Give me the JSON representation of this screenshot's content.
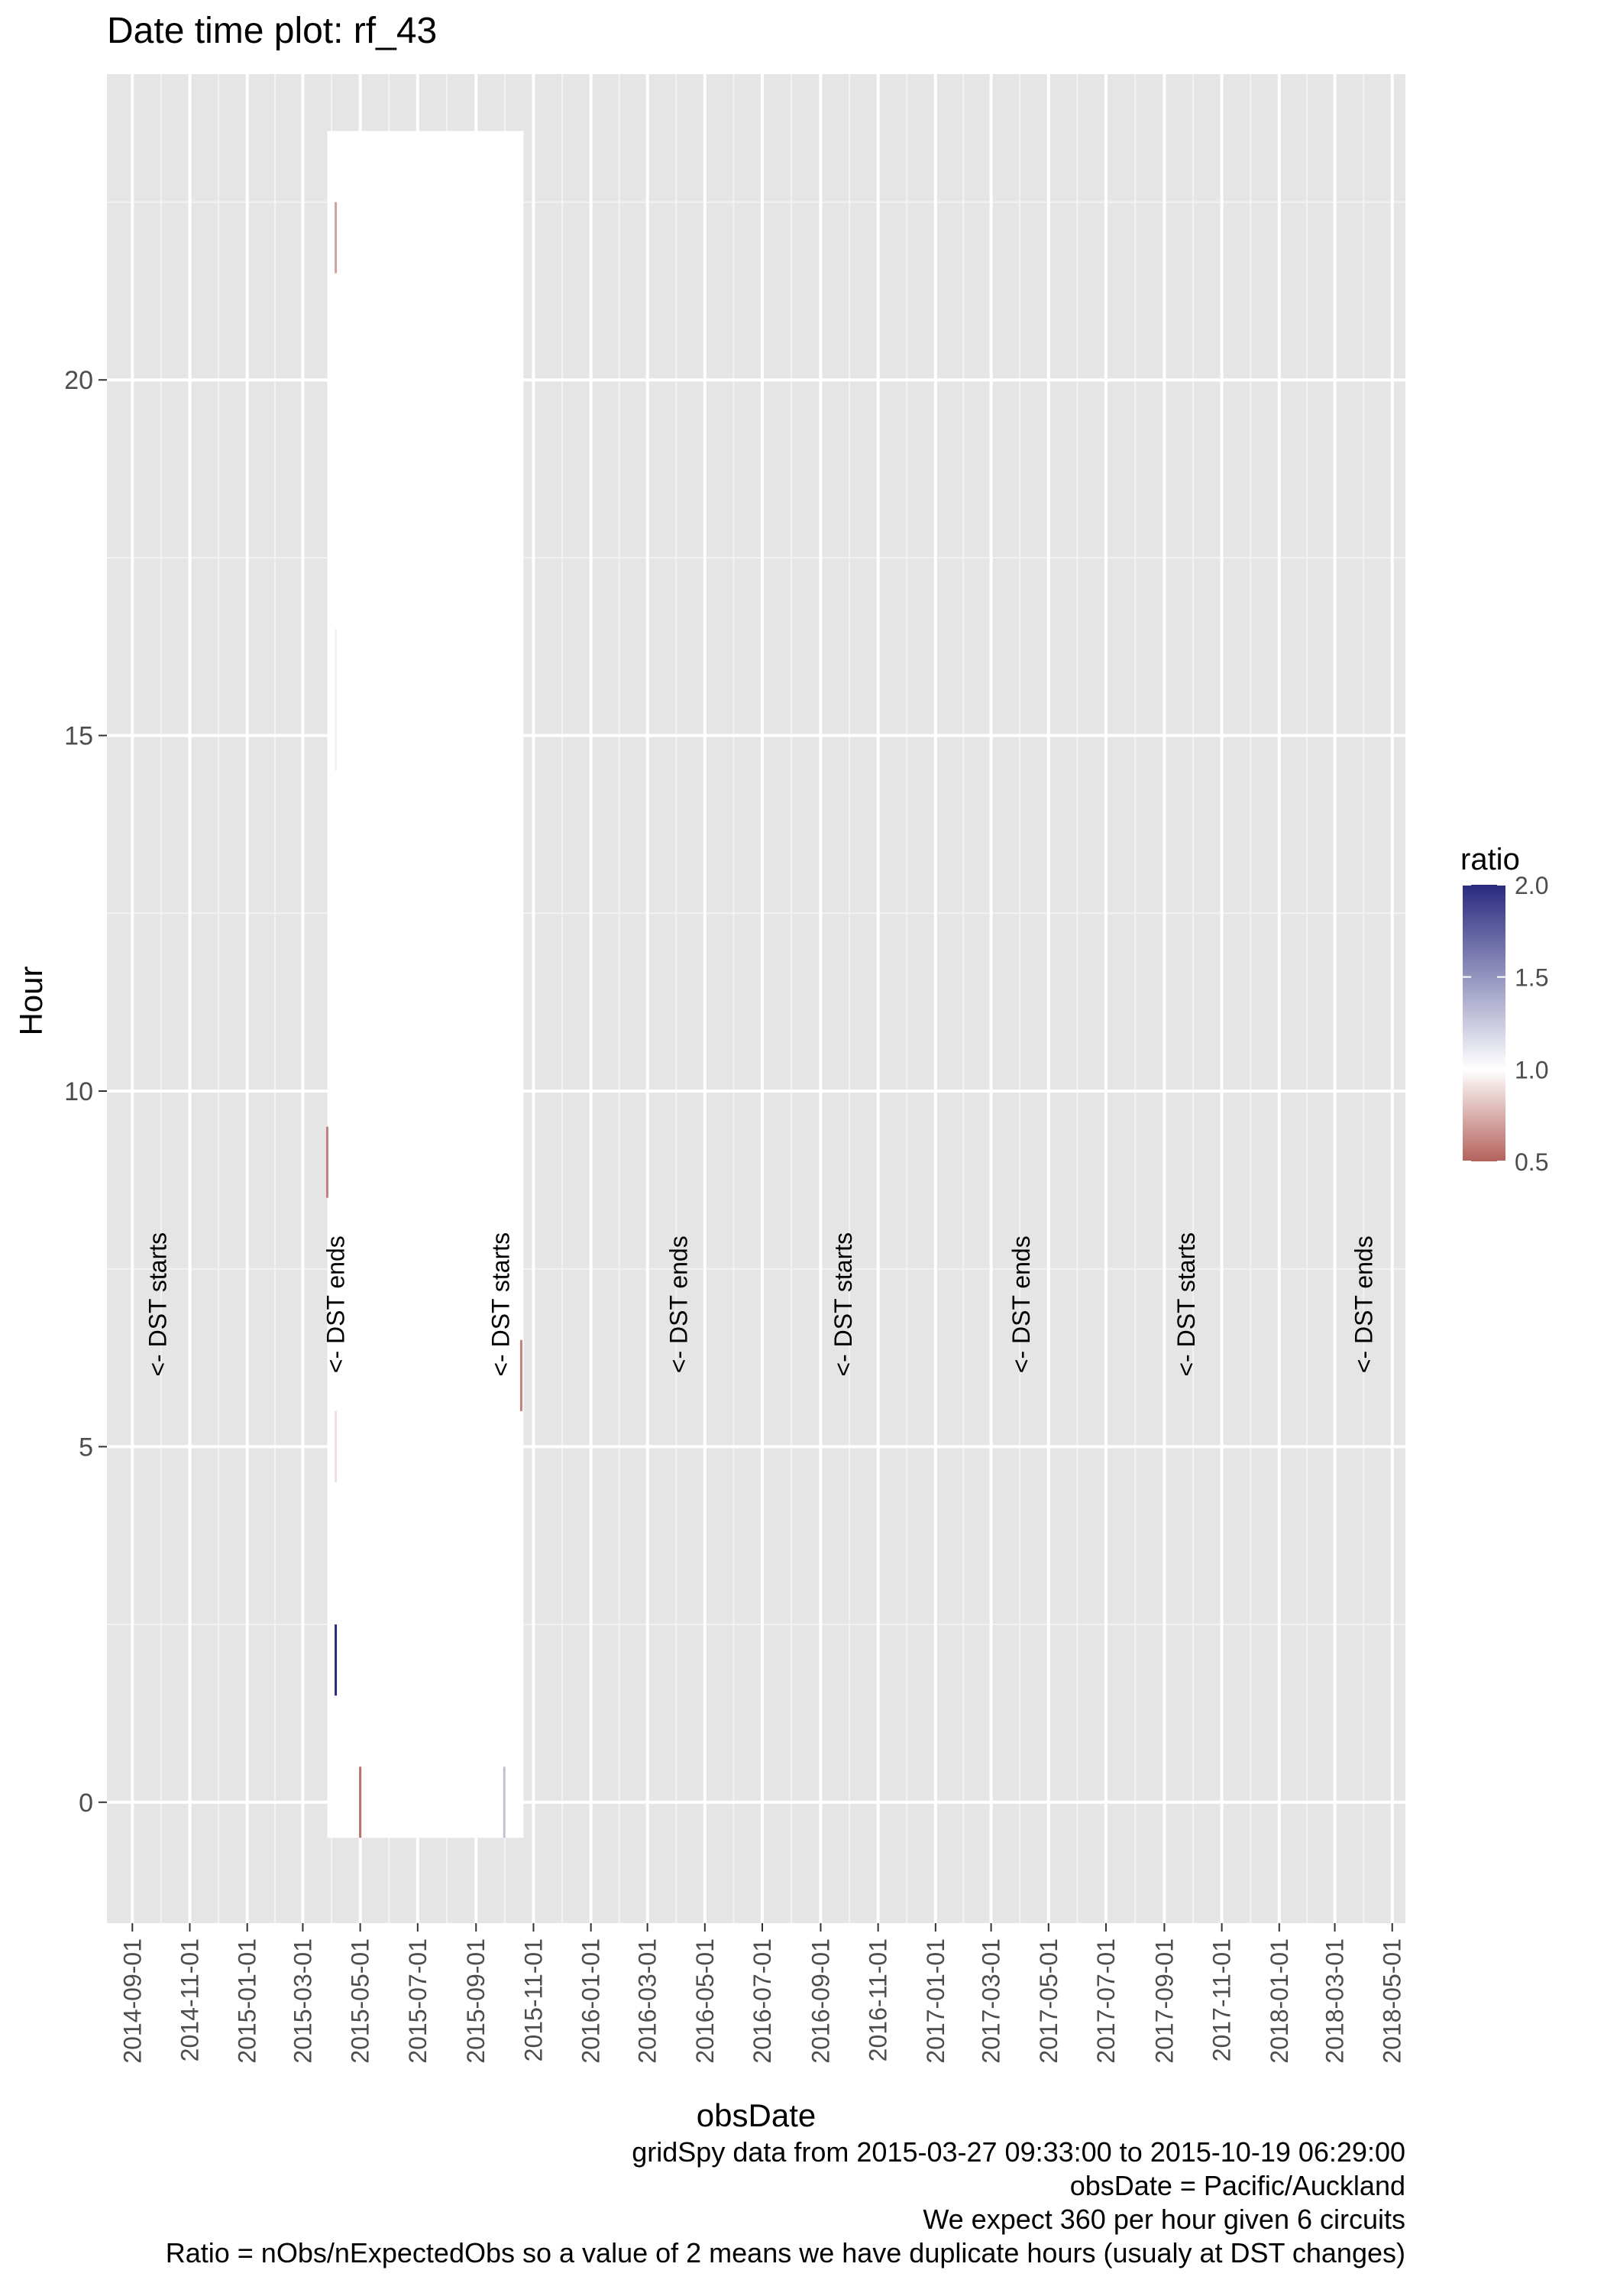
{
  "chart_data": {
    "type": "heatmap",
    "title": "Date time plot: rf_43",
    "xlabel": "obsDate",
    "ylabel": "Hour",
    "x_ticks": [
      "2014-09-01",
      "2014-11-01",
      "2015-01-01",
      "2015-03-01",
      "2015-05-01",
      "2015-07-01",
      "2015-09-01",
      "2015-11-01",
      "2016-01-01",
      "2016-03-01",
      "2016-05-01",
      "2016-07-01",
      "2016-09-01",
      "2016-11-01",
      "2017-01-01",
      "2017-03-01",
      "2017-05-01",
      "2017-07-01",
      "2017-09-01",
      "2017-11-01",
      "2018-01-01",
      "2018-03-01",
      "2018-05-01"
    ],
    "y_ticks": [
      0,
      5,
      10,
      15,
      20
    ],
    "xlim": [
      "2014-08-05",
      "2018-05-15"
    ],
    "ylim": [
      -1.7,
      24.3
    ],
    "grid": true,
    "data_range": {
      "x": [
        "2015-03-27",
        "2015-10-19"
      ],
      "y": [
        -0.5,
        23.5
      ],
      "ratio_typical": 1.0
    },
    "highlights": [
      {
        "date": "2015-03-27",
        "hour_from": 8.5,
        "hour_to": 9.5,
        "ratio": 0.6
      },
      {
        "date": "2015-04-05",
        "hour_from": 1.5,
        "hour_to": 2.5,
        "ratio": 2.0
      },
      {
        "date": "2015-04-05",
        "hour_from": 21.5,
        "hour_to": 22.5,
        "ratio": 0.7
      },
      {
        "date": "2015-04-05",
        "hour_from": 4.5,
        "hour_to": 5.5,
        "ratio": 0.9
      },
      {
        "date": "2015-04-05",
        "hour_from": 14.5,
        "hour_to": 16.5,
        "ratio": 0.95
      },
      {
        "date": "2015-05-01",
        "hour_from": -0.5,
        "hour_to": 0.5,
        "ratio": 0.55
      },
      {
        "date": "2015-10-01",
        "hour_from": -0.5,
        "hour_to": 0.5,
        "ratio": 1.3
      },
      {
        "date": "2015-10-19",
        "hour_from": 5.5,
        "hour_to": 6.5,
        "ratio": 0.6
      }
    ],
    "annotations": [
      {
        "label": "<- DST starts",
        "date": "2014-09-28",
        "hour": 7
      },
      {
        "label": "<- DST ends",
        "date": "2015-04-05",
        "hour": 7
      },
      {
        "label": "<- DST starts",
        "date": "2015-09-27",
        "hour": 7
      },
      {
        "label": "<- DST ends",
        "date": "2016-04-03",
        "hour": 7
      },
      {
        "label": "<- DST starts",
        "date": "2016-09-25",
        "hour": 7
      },
      {
        "label": "<- DST ends",
        "date": "2017-04-02",
        "hour": 7
      },
      {
        "label": "<- DST starts",
        "date": "2017-09-24",
        "hour": 7
      },
      {
        "label": "<- DST ends",
        "date": "2018-04-01",
        "hour": 7
      }
    ],
    "legend": {
      "title": "ratio",
      "placement": "right",
      "ticks": [
        2.0,
        1.5,
        1.0,
        0.5
      ],
      "tick_labels": [
        "2.0",
        "1.5",
        "1.0",
        "0.5"
      ],
      "range": [
        0.5,
        2.0
      ],
      "colors": {
        "low": "#b4615b",
        "mid": "#ffffff",
        "high": "#2a2a80"
      }
    },
    "caption_lines": [
      "gridSpy data from 2015-03-27 09:33:00 to 2015-10-19 06:29:00",
      "obsDate = Pacific/Auckland",
      "We expect 360 per hour given 6 circuits",
      "Ratio = nObs/nExpectedObs so a value of 2 means we have duplicate hours (usualy at DST changes)"
    ],
    "colors": {
      "panel": "#e5e5e5",
      "grid_major": "#ffffff",
      "grid_minor": "#f2f2f2",
      "text": "#000000",
      "axis_text": "#4d4d4d",
      "tick": "#333333"
    }
  }
}
